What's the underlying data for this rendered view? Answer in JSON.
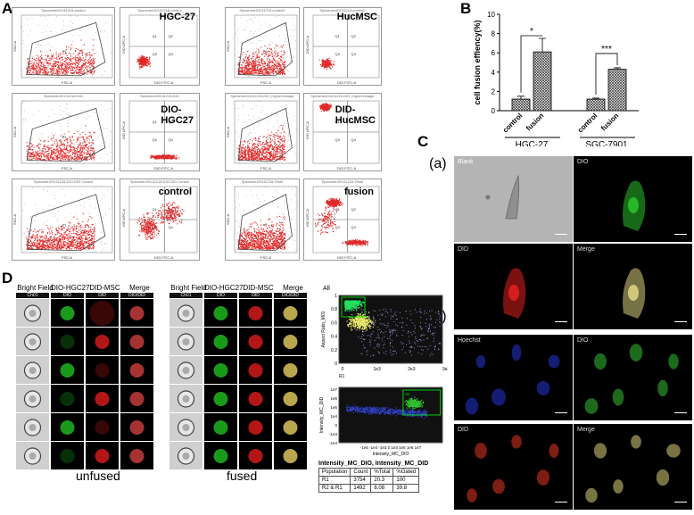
{
  "panels": {
    "A": "A",
    "B": "B",
    "C": "C",
    "D": "D"
  },
  "panelA": {
    "row1": [
      {
        "title": "Specimen20131218-control",
        "inlabel": ""
      },
      {
        "title": "Specimen20131218-control",
        "inlabel": "HGC-27"
      },
      {
        "title": "Specimen20131218-control2",
        "inlabel": ""
      },
      {
        "title": "Specimen20131218-control2",
        "inlabel": "HucMSC"
      }
    ],
    "row2": [
      {
        "title": "Specimen20131218-DIO",
        "inlabel": ""
      },
      {
        "title": "Specimen20131218-DIO",
        "inlabel": "DIO-\nHGC27"
      },
      {
        "title": "Specimen20131218-DID_HigherVoltage",
        "inlabel": ""
      },
      {
        "title": "Specimen20131218-DID_HigherVoltage",
        "inlabel": "DID-\nHucMSC"
      }
    ],
    "row3": [
      {
        "title": "Specimen20131218-DIO-DID Control",
        "inlabel": ""
      },
      {
        "title": "Specimen20131218-DIO-DID Control",
        "inlabel": "control"
      },
      {
        "title": "Specimen20131218-Test0",
        "inlabel": ""
      },
      {
        "title": "Specimen20131218-Test0",
        "inlabel": "fusion"
      }
    ],
    "axes": {
      "fsc": "FSC-A",
      "ssc": "SSC-A",
      "dio": "DIO FITC-A",
      "did": "DID APC-A",
      "p1": "P1",
      "q1": "Q1",
      "q2": "Q2",
      "q3": "Q3",
      "q4": "Q4"
    }
  },
  "chart_data": {
    "type": "bar",
    "ylabel": "cell fusion effiency(%)",
    "ylim": [
      0,
      10
    ],
    "yticks": [
      0,
      2,
      4,
      6,
      8,
      10
    ],
    "groups": [
      {
        "name": "HGC-27",
        "categories": [
          "control",
          "fusion"
        ],
        "values": [
          1.2,
          6.1
        ],
        "errors": [
          0.3,
          1.4
        ],
        "significance": "*"
      },
      {
        "name": "SGC-7901",
        "categories": [
          "control",
          "fusion"
        ],
        "values": [
          1.2,
          4.3
        ],
        "errors": [
          0.1,
          0.15
        ],
        "significance": "***"
      }
    ]
  },
  "panelC": {
    "sub_a": "(a)",
    "sub_b": "(b)",
    "a_labels": [
      "Blank",
      "DIO",
      "DID",
      "Merge"
    ],
    "b_labels": [
      "Hoechst",
      "DIO",
      "DID",
      "Merge"
    ]
  },
  "panelD": {
    "headers_left": [
      "Bright Field",
      "DIO-HGC27",
      "DID-MSC",
      "Merge"
    ],
    "headers_right": [
      "Bright Field",
      "DIO-HGC27",
      "DID-MSC",
      "Merge"
    ],
    "subheaders": [
      "Ch01",
      "DIO",
      "DID",
      "DIO/DID"
    ],
    "caption_left": "unfused",
    "caption_right": "fused",
    "scatter1": {
      "title": "All",
      "ylabel": "Aspect Ratio_M01",
      "xlabel": "R1",
      "xticks": [
        "0",
        "1e3",
        "2e3",
        "3e3"
      ],
      "yticks": [
        "0",
        "0.2",
        "0.4",
        "0.6",
        "0.8",
        "1"
      ]
    },
    "scatter2": {
      "ylabel": "Intensity_MC_DID",
      "xlabel": "Intensity_MC_DIO",
      "xticks": "-1e5 -1e4 -1e3 0 1e3 1e5 1e6 1e7",
      "yticks": [
        "1e7",
        "1e6",
        "1e5",
        "1e4",
        "0",
        "-1e3",
        "-1e4"
      ],
      "gate": "R2"
    },
    "table": {
      "title": "Intensity_MC_DIO, Intensity_MC_DID",
      "header": [
        "Population",
        "Count",
        "%Total",
        "%Gated"
      ],
      "rows": [
        [
          "R1",
          "3754",
          "20.3",
          "100"
        ],
        [
          "R2 & R1",
          "1492",
          "8.08",
          "39.8"
        ]
      ]
    }
  }
}
